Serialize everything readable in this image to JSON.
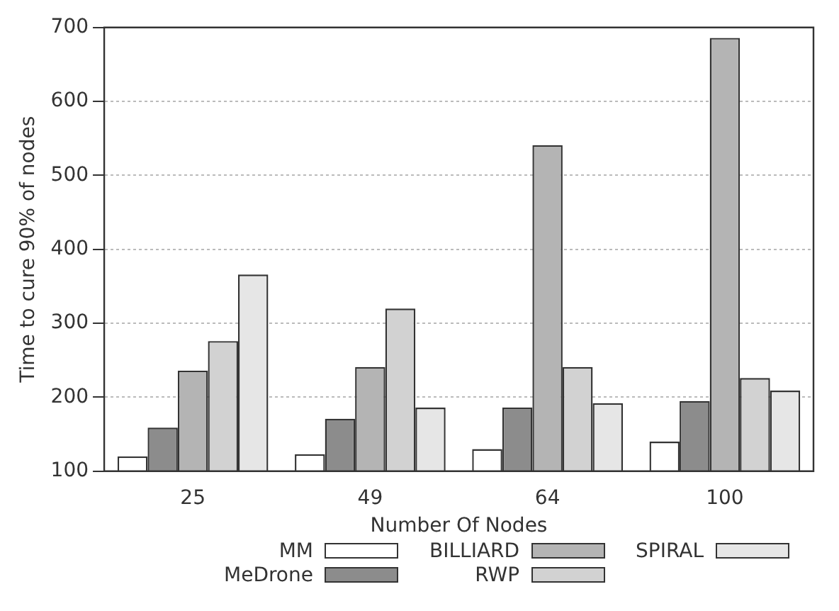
{
  "chart_data": {
    "type": "bar",
    "xlabel": "Number Of Nodes",
    "ylabel": "Time to cure 90% of nodes",
    "categories": [
      "25",
      "49",
      "64",
      "100"
    ],
    "series": [
      {
        "name": "MM",
        "color": "#ffffff",
        "values": [
          120,
          123,
          130,
          140
        ]
      },
      {
        "name": "MeDrone",
        "color": "#8c8c8c",
        "values": [
          159,
          171,
          186,
          195
        ]
      },
      {
        "name": "BILLIARD",
        "color": "#b4b4b4",
        "values": [
          236,
          241,
          541,
          686
        ]
      },
      {
        "name": "RWP",
        "color": "#d2d2d2",
        "values": [
          276,
          320,
          241,
          226
        ]
      },
      {
        "name": "SPIRAL",
        "color": "#e6e6e6",
        "values": [
          366,
          186,
          192,
          209
        ]
      }
    ],
    "ylim": [
      100,
      700
    ],
    "yticks": [
      100,
      200,
      300,
      400,
      500,
      600,
      700
    ],
    "grid": "y",
    "legend": "bottom"
  }
}
